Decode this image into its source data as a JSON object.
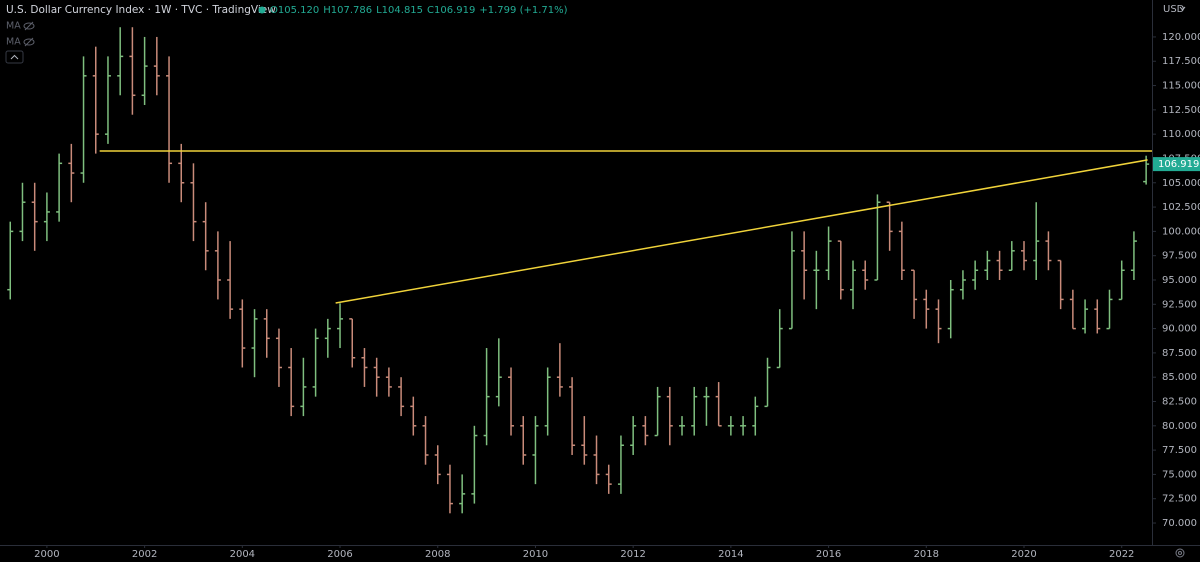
{
  "chart_data": {
    "type": "ohlc",
    "title": "U.S. Dollar Currency Index · 1W · TVC · TradingView",
    "ohlc_legend": [
      "O105.120",
      "H107.786",
      "L104.815",
      "C106.919",
      "+1.799 (+1.71%)"
    ],
    "indicators": [
      "MA",
      "MA"
    ],
    "currency": "USD",
    "up_color": "#7fbf7f",
    "down_color": "#c98b7a",
    "last_color": "#22ab94",
    "x": [
      1999.25,
      1999.5,
      1999.75,
      2000.0,
      2000.25,
      2000.5,
      2000.75,
      2001.0,
      2001.25,
      2001.5,
      2001.75,
      2002.0,
      2002.25,
      2002.5,
      2002.75,
      2003.0,
      2003.25,
      2003.5,
      2003.75,
      2004.0,
      2004.25,
      2004.5,
      2004.75,
      2005.0,
      2005.25,
      2005.5,
      2005.75,
      2006.0,
      2006.25,
      2006.5,
      2006.75,
      2007.0,
      2007.25,
      2007.5,
      2007.75,
      2008.0,
      2008.25,
      2008.5,
      2008.75,
      2009.0,
      2009.25,
      2009.5,
      2009.75,
      2010.0,
      2010.25,
      2010.5,
      2010.75,
      2011.0,
      2011.25,
      2011.5,
      2011.75,
      2012.0,
      2012.25,
      2012.5,
      2012.75,
      2013.0,
      2013.25,
      2013.5,
      2013.75,
      2014.0,
      2014.25,
      2014.5,
      2014.75,
      2015.0,
      2015.25,
      2015.5,
      2015.75,
      2016.0,
      2016.25,
      2016.5,
      2016.75,
      2017.0,
      2017.25,
      2017.5,
      2017.75,
      2018.0,
      2018.25,
      2018.5,
      2018.75,
      2019.0,
      2019.25,
      2019.5,
      2019.75,
      2020.0,
      2020.25,
      2020.5,
      2020.75,
      2021.0,
      2021.25,
      2021.5,
      2021.75,
      2022.0,
      2022.25,
      2022.5
    ],
    "open": [
      94,
      100,
      103,
      101,
      102,
      107,
      106,
      116,
      110,
      116,
      118,
      114,
      117,
      116,
      107,
      105,
      101,
      98,
      95,
      92,
      88,
      91,
      89,
      86,
      82,
      84,
      89,
      90,
      91,
      87,
      86,
      85,
      84,
      82,
      80,
      77,
      75,
      72,
      73,
      79,
      83,
      85,
      80,
      77,
      80,
      85,
      84,
      78,
      77,
      75,
      74,
      78,
      80,
      79,
      83,
      80,
      80,
      83,
      83,
      80,
      80,
      80,
      82,
      86,
      90,
      98,
      96,
      96,
      99,
      94,
      96,
      95,
      103,
      100,
      96,
      93,
      92,
      90,
      94,
      95,
      96,
      97,
      96,
      98,
      97,
      99,
      97,
      93,
      90,
      92,
      90,
      93,
      96,
      105.12
    ],
    "high": [
      101,
      105,
      105,
      104,
      108,
      109,
      118,
      119,
      118,
      121,
      121,
      120,
      120,
      118,
      109,
      107,
      103,
      100,
      99,
      93,
      92,
      92,
      90,
      88,
      87,
      90,
      91,
      92.6,
      91,
      88,
      87,
      86,
      85,
      83,
      81,
      78,
      76,
      75,
      80,
      88,
      89,
      86,
      81,
      81,
      86,
      88.5,
      85,
      81,
      79,
      76,
      79,
      81,
      81,
      84,
      84,
      81,
      84,
      84,
      84.5,
      81,
      81,
      83,
      87,
      92,
      100,
      100,
      98,
      100.5,
      99,
      97,
      97,
      103.8,
      103,
      101,
      96,
      94,
      93,
      95,
      96,
      97,
      98,
      98,
      99,
      99,
      103,
      100,
      97,
      94,
      93,
      93,
      94,
      97,
      100,
      107.786
    ],
    "low": [
      93,
      99,
      98,
      99,
      101,
      103,
      105,
      108,
      109,
      114,
      112,
      113,
      114,
      105,
      103,
      99,
      96,
      93,
      91,
      86,
      85,
      87,
      84,
      81,
      81,
      83,
      87,
      88,
      86,
      84,
      83,
      83,
      81,
      79,
      76,
      74,
      71,
      71,
      72,
      78,
      82,
      79,
      76,
      74,
      79,
      83,
      77,
      76,
      74,
      73,
      73,
      77,
      78,
      79,
      78,
      79,
      79,
      80,
      80,
      79,
      79,
      79,
      82,
      86,
      90,
      93,
      92,
      95,
      93,
      92,
      94,
      95,
      98,
      95,
      91,
      90,
      88.5,
      89,
      93,
      94,
      95,
      95,
      96,
      96,
      95,
      96,
      92,
      90,
      89.5,
      89.5,
      90,
      93,
      95,
      104.815
    ],
    "close": [
      100,
      103,
      101,
      102,
      107,
      106,
      116,
      110,
      116,
      118,
      114,
      117,
      116,
      107,
      105,
      101,
      98,
      95,
      92,
      88,
      91,
      89,
      86,
      82,
      84,
      89,
      90,
      91,
      87,
      86,
      85,
      84,
      82,
      80,
      77,
      75,
      72,
      73,
      79,
      83,
      85,
      80,
      77,
      80,
      85,
      84,
      78,
      77,
      75,
      74,
      78,
      80,
      79,
      83,
      80,
      80,
      83,
      83,
      80,
      80,
      80,
      82,
      86,
      90,
      98,
      96,
      96,
      99,
      94,
      96,
      95,
      103,
      100,
      96,
      93,
      92,
      90,
      94,
      95,
      96,
      97,
      96,
      98,
      97,
      99,
      97,
      93,
      90,
      92,
      90,
      93,
      96,
      99,
      106.919
    ],
    "xlim": [
      1999.04,
      2022.62
    ],
    "xticks": [
      2000,
      2002,
      2004,
      2006,
      2008,
      2010,
      2012,
      2014,
      2016,
      2018,
      2020,
      2022
    ],
    "ylim": [
      67.74,
      123.8
    ],
    "yticks": [
      {
        "value": 70,
        "label": "70.000"
      },
      {
        "value": 72.5,
        "label": "72.500"
      },
      {
        "value": 75,
        "label": "75.000"
      },
      {
        "value": 77.5,
        "label": "77.500"
      },
      {
        "value": 80,
        "label": "80.000"
      },
      {
        "value": 82.5,
        "label": "82.500"
      },
      {
        "value": 85,
        "label": "85.000"
      },
      {
        "value": 87.5,
        "label": "87.500"
      },
      {
        "value": 90,
        "label": "90.000"
      },
      {
        "value": 92.5,
        "label": "92.500"
      },
      {
        "value": 95,
        "label": "95.000"
      },
      {
        "value": 97.5,
        "label": "97.500"
      },
      {
        "value": 100,
        "label": "100.000"
      },
      {
        "value": 102.5,
        "label": "102.500"
      },
      {
        "value": 105,
        "label": "105.000"
      },
      {
        "value": 107.5,
        "label": "107.500"
      },
      {
        "value": 110,
        "label": "110.000"
      },
      {
        "value": 112.5,
        "label": "112.500"
      },
      {
        "value": 115,
        "label": "115.000"
      },
      {
        "value": 117.5,
        "label": "117.500"
      },
      {
        "value": 120,
        "label": "120.000"
      }
    ],
    "trend_lines": [
      {
        "color": "#f0d33a",
        "x": [
          2001.08,
          2022.62
        ],
        "y": [
          108.27,
          108.27
        ]
      },
      {
        "color": "#f0d33a",
        "x": [
          2005.91,
          2022.53
        ],
        "y": [
          92.63,
          107.35
        ]
      }
    ]
  }
}
